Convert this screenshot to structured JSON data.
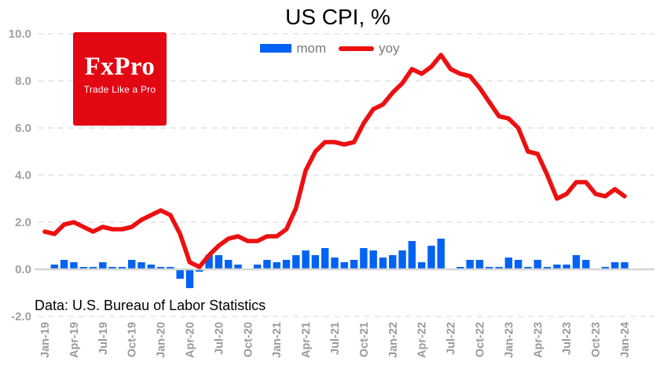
{
  "title": "US CPI, %",
  "footer": "Data: U.S. Bureau of Labor Statistics",
  "logo": {
    "name": "FxPro",
    "tagline": "Trade Like a Pro"
  },
  "colors": {
    "bar_blue": "#0062f2",
    "line_red": "#ec1010",
    "logo_red": "#e30613",
    "y_label_gray": "#a0a0a0",
    "x_label_gray": "#9b9b9b",
    "legend_text_gray": "#7a7a7a",
    "grid_dashed": "#e2e2e2",
    "grid_zero": "#d6d6d6"
  },
  "chart_data": {
    "type": "combo",
    "title": "US CPI, %",
    "xlabel": "",
    "ylabel": "",
    "ylim": [
      -2,
      10
    ],
    "grid": "horizontal-dashed",
    "legend_position": "top-center",
    "x_tick_every": 3,
    "x": [
      "Jan-19",
      "Feb-19",
      "Mar-19",
      "Apr-19",
      "May-19",
      "Jun-19",
      "Jul-19",
      "Aug-19",
      "Sep-19",
      "Oct-19",
      "Nov-19",
      "Dec-19",
      "Jan-20",
      "Feb-20",
      "Mar-20",
      "Apr-20",
      "May-20",
      "Jun-20",
      "Jul-20",
      "Aug-20",
      "Sep-20",
      "Oct-20",
      "Nov-20",
      "Dec-20",
      "Jan-21",
      "Feb-21",
      "Mar-21",
      "Apr-21",
      "May-21",
      "Jun-21",
      "Jul-21",
      "Aug-21",
      "Sep-21",
      "Oct-21",
      "Nov-21",
      "Dec-21",
      "Jan-22",
      "Feb-22",
      "Mar-22",
      "Apr-22",
      "May-22",
      "Jun-22",
      "Jul-22",
      "Aug-22",
      "Sep-22",
      "Oct-22",
      "Nov-22",
      "Dec-22",
      "Jan-23",
      "Feb-23",
      "Mar-23",
      "Apr-23",
      "May-23",
      "Jun-23",
      "Jul-23",
      "Aug-23",
      "Sep-23",
      "Oct-23",
      "Nov-23",
      "Dec-23",
      "Jan-24"
    ],
    "yticks": {
      "values": [
        10,
        8,
        6,
        4,
        2,
        0,
        -2
      ],
      "labels": [
        "10.0",
        "8.0",
        "6.0",
        "4.0",
        "2.0",
        "0.0",
        "-2.0"
      ]
    },
    "series": [
      {
        "name": "mom",
        "type": "bar",
        "color": "#0062f2",
        "values": [
          0.0,
          0.2,
          0.4,
          0.3,
          0.1,
          0.1,
          0.3,
          0.1,
          0.1,
          0.4,
          0.3,
          0.2,
          0.1,
          0.1,
          -0.4,
          -0.8,
          -0.1,
          0.6,
          0.6,
          0.4,
          0.2,
          0.0,
          0.2,
          0.4,
          0.3,
          0.4,
          0.6,
          0.8,
          0.6,
          0.9,
          0.5,
          0.3,
          0.4,
          0.9,
          0.8,
          0.5,
          0.6,
          0.8,
          1.2,
          0.3,
          1.0,
          1.3,
          0.0,
          0.1,
          0.4,
          0.4,
          0.1,
          0.1,
          0.5,
          0.4,
          0.1,
          0.4,
          0.1,
          0.2,
          0.2,
          0.6,
          0.4,
          0.0,
          0.1,
          0.3,
          0.3
        ]
      },
      {
        "name": "yoy",
        "type": "line",
        "color": "#ec1010",
        "values": [
          1.6,
          1.5,
          1.9,
          2.0,
          1.8,
          1.6,
          1.8,
          1.7,
          1.7,
          1.8,
          2.1,
          2.3,
          2.5,
          2.3,
          1.5,
          0.3,
          0.1,
          0.6,
          1.0,
          1.3,
          1.4,
          1.2,
          1.2,
          1.4,
          1.4,
          1.7,
          2.6,
          4.2,
          5.0,
          5.4,
          5.4,
          5.3,
          5.4,
          6.2,
          6.8,
          7.0,
          7.5,
          7.9,
          8.5,
          8.3,
          8.6,
          9.1,
          8.5,
          8.3,
          8.2,
          7.7,
          7.1,
          6.5,
          6.4,
          6.0,
          5.0,
          4.9,
          4.0,
          3.0,
          3.2,
          3.7,
          3.7,
          3.2,
          3.1,
          3.4,
          3.1
        ]
      }
    ]
  }
}
